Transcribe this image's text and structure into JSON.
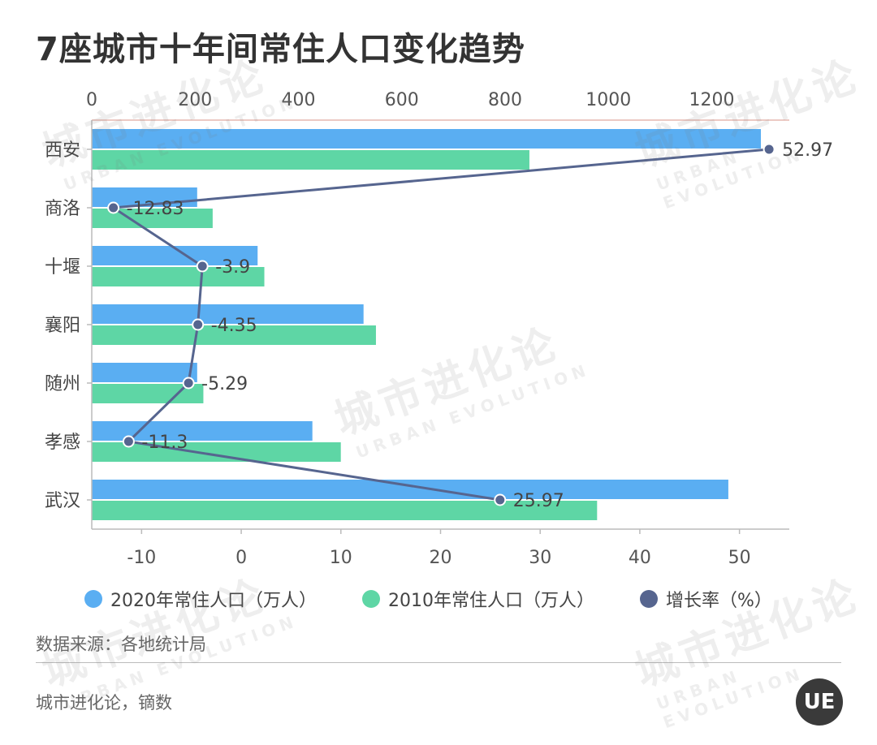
{
  "title": "7座城市十年间常住人口变化趋势",
  "chart_data": {
    "type": "bar",
    "orientation": "horizontal",
    "categories": [
      "西安",
      "商洛",
      "十堰",
      "襄阳",
      "随州",
      "孝感",
      "武汉"
    ],
    "series": [
      {
        "name": "2020年常住人口（万人）",
        "type": "bar",
        "axis": "top",
        "values": [
          1295,
          204,
          321,
          526,
          204,
          427,
          1232
        ]
      },
      {
        "name": "2010年常住人口（万人）",
        "type": "bar",
        "axis": "top",
        "values": [
          847,
          234,
          334,
          550,
          216,
          482,
          978
        ]
      },
      {
        "name": "增长率（%）",
        "type": "line",
        "axis": "bottom",
        "values": [
          52.97,
          -12.83,
          -3.9,
          -4.35,
          -5.29,
          -11.3,
          25.97
        ]
      }
    ],
    "x_top_ticks": [
      "0",
      "200",
      "400",
      "600",
      "800",
      "1000",
      "1200"
    ],
    "x_top_range": [
      0,
      1350
    ],
    "x_bottom_ticks": [
      "-10",
      "0",
      "10",
      "20",
      "30",
      "40",
      "50"
    ],
    "x_bottom_range": [
      -15,
      55
    ],
    "legend_position": "bottom",
    "colors": {
      "bar2020": "#5AAEF2",
      "bar2010": "#5ED6A5",
      "line": "#56658F"
    }
  },
  "legend": [
    {
      "label": "2020年常住人口（万人）",
      "color": "#5AAEF2"
    },
    {
      "label": "2010年常住人口（万人）",
      "color": "#5ED6A5"
    },
    {
      "label": "增长率（%）",
      "color": "#56658F"
    }
  ],
  "source": "数据来源：各地统计局",
  "credit": "城市进化论，镝数",
  "watermark": {
    "cn": "城市进化论",
    "en": "URBAN EVOLUTION"
  },
  "logo": "UE"
}
